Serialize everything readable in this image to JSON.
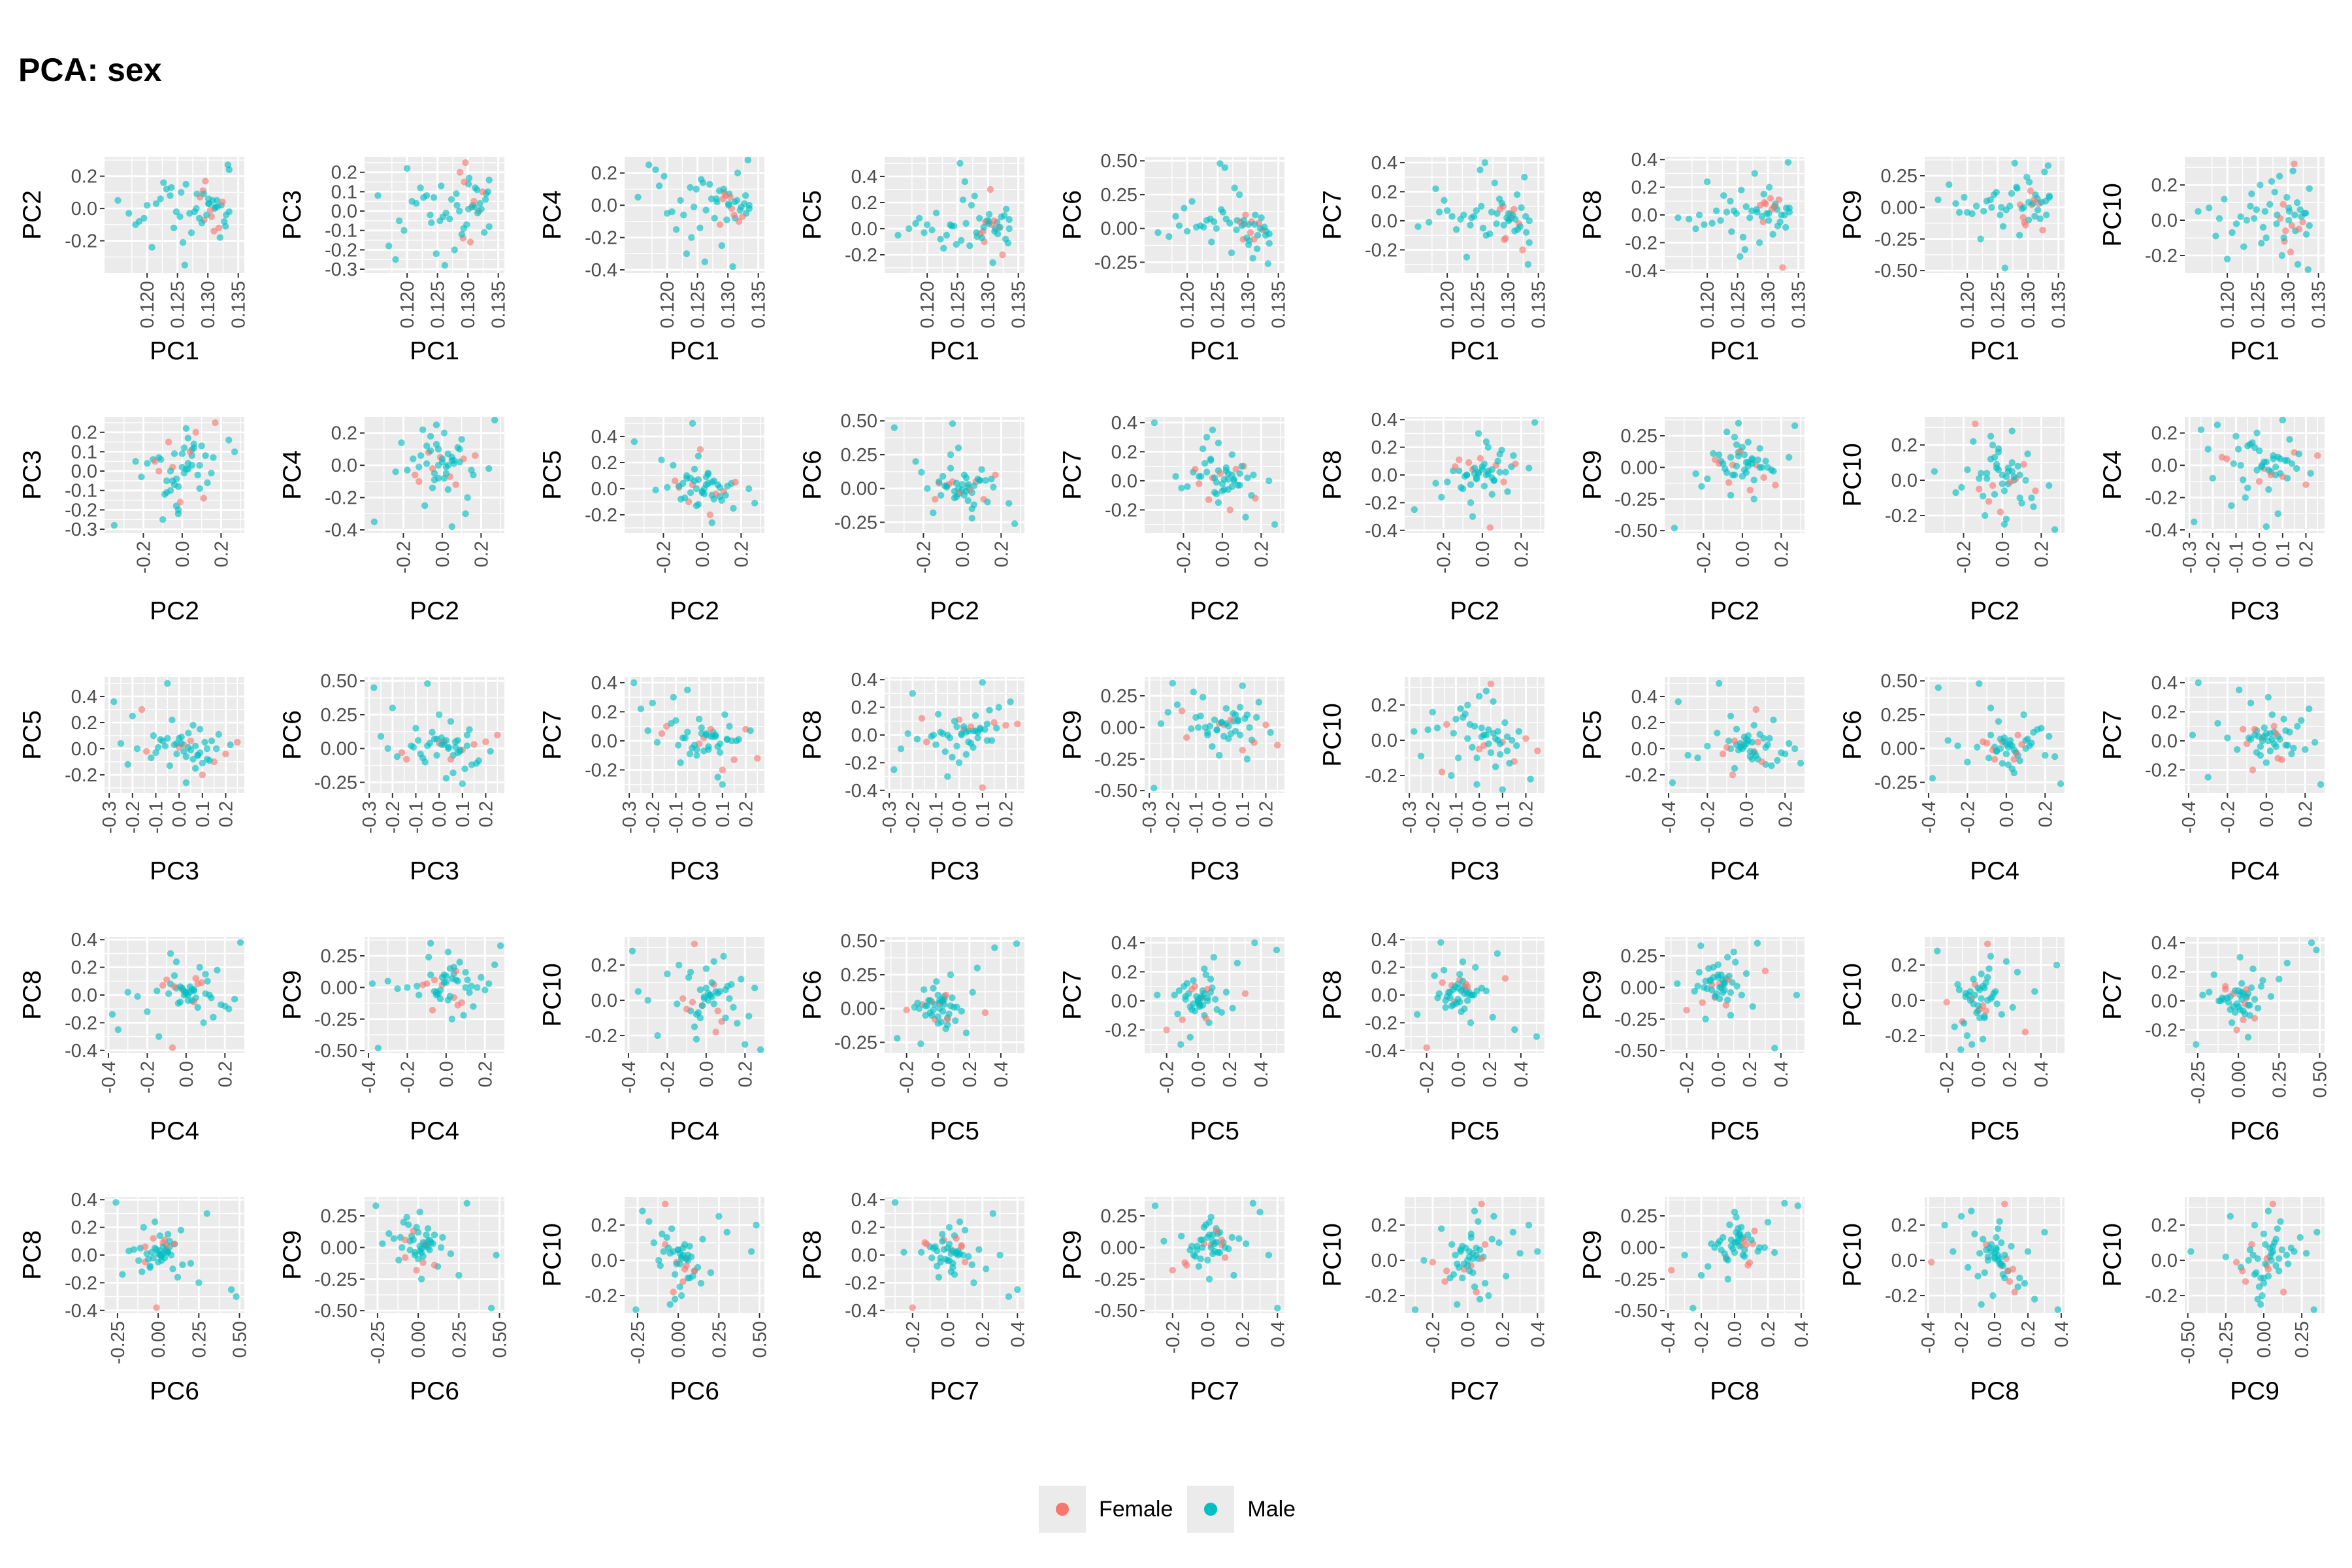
{
  "title": "PCA: sex",
  "colors": {
    "Female": "#F8766D",
    "Male": "#00BFC4",
    "panel_bg": "#EBEBEB",
    "grid": "#FFFFFF"
  },
  "legend": {
    "items": [
      {
        "label": "Female",
        "color": "#F8766D"
      },
      {
        "label": "Male",
        "color": "#00BFC4"
      }
    ]
  },
  "chart_data": {
    "type": "scatter",
    "layout": "pairwise scatter matrix, 45 panels, 9 columns x 5 rows",
    "axes": {
      "PC1": {
        "lim": [
          0.113,
          0.136
        ],
        "ticks": [
          0.12,
          0.125,
          0.13,
          0.135
        ],
        "tick_labels": [
          "0.120",
          "0.125",
          "0.130",
          "0.135"
        ]
      },
      "PC2": {
        "lim": [
          -0.4,
          0.32
        ],
        "ticks": [
          -0.2,
          0.0,
          0.2
        ],
        "tick_labels": [
          "-0.2",
          "0.0",
          "0.2"
        ]
      },
      "PC3": {
        "lim": [
          -0.32,
          0.28
        ],
        "ticks": [
          -0.3,
          -0.2,
          -0.1,
          0.0,
          0.1,
          0.2
        ],
        "tick_labels": [
          "-0.3",
          "-0.2",
          "-0.1",
          "0.0",
          "0.1",
          "0.2"
        ]
      },
      "PC4": {
        "lim": [
          -0.42,
          0.3
        ],
        "ticks": [
          -0.4,
          -0.2,
          0.0,
          0.2
        ],
        "tick_labels": [
          "-0.4",
          "-0.2",
          "0.0",
          "0.2"
        ]
      },
      "PC5": {
        "lim": [
          -0.34,
          0.55
        ],
        "ticks": [
          -0.2,
          0.0,
          0.2,
          0.4
        ],
        "tick_labels": [
          "-0.2",
          "0.0",
          "0.2",
          "0.4"
        ]
      },
      "PC6": {
        "lim": [
          -0.33,
          0.53
        ],
        "ticks": [
          -0.25,
          0.0,
          0.25,
          0.5
        ],
        "tick_labels": [
          "-0.25",
          "0.00",
          "0.25",
          "0.50"
        ]
      },
      "PC7": {
        "lim": [
          -0.36,
          0.44
        ],
        "ticks": [
          -0.2,
          0.0,
          0.2,
          0.4
        ],
        "tick_labels": [
          "-0.2",
          "0.0",
          "0.2",
          "0.4"
        ]
      },
      "PC8": {
        "lim": [
          -0.42,
          0.42
        ],
        "ticks": [
          -0.4,
          -0.2,
          0.0,
          0.2,
          0.4
        ],
        "tick_labels": [
          "-0.4",
          "-0.2",
          "0.0",
          "0.2",
          "0.4"
        ]
      },
      "PC9": {
        "lim": [
          -0.52,
          0.4
        ],
        "ticks": [
          -0.5,
          -0.25,
          0.0,
          0.25
        ],
        "tick_labels": [
          "-0.50",
          "-0.25",
          "0.00",
          "0.25"
        ]
      },
      "PC10": {
        "lim": [
          -0.3,
          0.36
        ],
        "ticks": [
          -0.2,
          0.0,
          0.2
        ],
        "tick_labels": [
          "-0.2",
          "0.0",
          "0.2"
        ]
      }
    },
    "panels": [
      [
        "PC1",
        "PC2"
      ],
      [
        "PC1",
        "PC3"
      ],
      [
        "PC1",
        "PC4"
      ],
      [
        "PC1",
        "PC5"
      ],
      [
        "PC1",
        "PC6"
      ],
      [
        "PC1",
        "PC7"
      ],
      [
        "PC1",
        "PC8"
      ],
      [
        "PC1",
        "PC9"
      ],
      [
        "PC1",
        "PC10"
      ],
      [
        "PC2",
        "PC3"
      ],
      [
        "PC2",
        "PC4"
      ],
      [
        "PC2",
        "PC5"
      ],
      [
        "PC2",
        "PC6"
      ],
      [
        "PC2",
        "PC7"
      ],
      [
        "PC2",
        "PC8"
      ],
      [
        "PC2",
        "PC9"
      ],
      [
        "PC2",
        "PC10"
      ],
      [
        "PC3",
        "PC4"
      ],
      [
        "PC3",
        "PC5"
      ],
      [
        "PC3",
        "PC6"
      ],
      [
        "PC3",
        "PC7"
      ],
      [
        "PC3",
        "PC8"
      ],
      [
        "PC3",
        "PC9"
      ],
      [
        "PC3",
        "PC10"
      ],
      [
        "PC4",
        "PC5"
      ],
      [
        "PC4",
        "PC6"
      ],
      [
        "PC4",
        "PC7"
      ],
      [
        "PC4",
        "PC8"
      ],
      [
        "PC4",
        "PC9"
      ],
      [
        "PC4",
        "PC10"
      ],
      [
        "PC5",
        "PC6"
      ],
      [
        "PC5",
        "PC7"
      ],
      [
        "PC5",
        "PC8"
      ],
      [
        "PC5",
        "PC9"
      ],
      [
        "PC5",
        "PC10"
      ],
      [
        "PC6",
        "PC7"
      ],
      [
        "PC6",
        "PC8"
      ],
      [
        "PC6",
        "PC9"
      ],
      [
        "PC6",
        "PC10"
      ],
      [
        "PC7",
        "PC8"
      ],
      [
        "PC7",
        "PC9"
      ],
      [
        "PC7",
        "PC10"
      ],
      [
        "PC8",
        "PC9"
      ],
      [
        "PC8",
        "PC10"
      ],
      [
        "PC9",
        "PC10"
      ]
    ],
    "samples": {
      "sex": [
        "Female",
        "Male",
        "Male",
        "Male",
        "Female",
        "Male",
        "Male",
        "Male",
        "Male",
        "Male",
        "Female",
        "Male",
        "Male",
        "Male",
        "Male",
        "Female",
        "Male",
        "Male",
        "Male",
        "Male",
        "Male",
        "Female",
        "Male",
        "Male",
        "Male",
        "Male",
        "Male",
        "Female",
        "Male",
        "Male",
        "Male",
        "Male",
        "Male",
        "Male",
        "Female",
        "Male",
        "Male",
        "Male",
        "Male",
        "Male",
        "Male",
        "Male",
        "Female",
        "Male",
        "Male",
        "Male",
        "Male",
        "Female",
        "Male",
        "Male",
        "Male",
        "Male",
        "Male",
        "Male"
      ],
      "PC1": [
        0.1306,
        0.1152,
        0.1187,
        0.1312,
        0.1292,
        0.1215,
        0.1329,
        0.1264,
        0.1248,
        0.1301,
        0.1318,
        0.1195,
        0.133,
        0.1282,
        0.124,
        0.1294,
        0.1322,
        0.117,
        0.1227,
        0.1315,
        0.1259,
        0.1287,
        0.1335,
        0.1208,
        0.1302,
        0.129,
        0.1238,
        0.1324,
        0.1273,
        0.1181,
        0.1311,
        0.1298,
        0.1256,
        0.132,
        0.1304,
        0.1232,
        0.1286,
        0.1335,
        0.127,
        0.12,
        0.1327,
        0.1308,
        0.1296,
        0.1244,
        0.1316,
        0.1278,
        0.1222,
        0.131,
        0.1293,
        0.1262,
        0.1333,
        0.1301,
        0.1254,
        0.1281
      ],
      "PC2": [
        -0.05,
        0.05,
        -0.08,
        0.01,
        0.11,
        0.03,
        -0.11,
        0.15,
        -0.02,
        0.06,
        -0.12,
        -0.06,
        -0.04,
        0.09,
        0.13,
        -0.07,
        0.02,
        -0.03,
        0.16,
        0.05,
        -0.21,
        0.07,
        -0.02,
        -0.24,
        0.03,
        -0.09,
        0.08,
        0.04,
        -0.15,
        -0.1,
        0.0,
        -0.04,
        0.1,
        -0.18,
        -0.01,
        0.12,
        -0.06,
        0.24,
        -0.03,
        0.02,
        -0.08,
        0.05,
        0.17,
        -0.12,
        0.01,
        -0.02,
        0.06,
        -0.14,
        0.09,
        -0.35,
        0.27,
        0.03,
        -0.05,
        0.0
      ],
      "PC3": [
        0.02,
        0.08,
        -0.05,
        0.12,
        -0.14,
        0.04,
        0.06,
        -0.01,
        -0.22,
        0.14,
        0.0,
        -0.1,
        0.09,
        0.03,
        -0.06,
        0.15,
        0.01,
        -0.18,
        0.07,
        0.11,
        -0.03,
        0.2,
        -0.08,
        0.05,
        0.17,
        -0.12,
        -0.02,
        0.1,
        0.06,
        -0.25,
        0.02,
        -0.07,
        0.13,
        0.04,
        -0.16,
        0.08,
        0.0,
        0.16,
        -0.04,
        0.22,
        -0.11,
        0.03,
        0.25,
        0.07,
        -0.01,
        -0.2,
        0.12,
        0.05,
        -0.09,
        -0.28,
        0.1,
        0.01,
        -0.05,
        0.09
      ],
      "PC4": [
        -0.02,
        0.05,
        0.12,
        -0.08,
        0.04,
        -0.15,
        0.06,
        -0.03,
        0.1,
        0.01,
        -0.1,
        0.18,
        -0.05,
        0.02,
        -0.2,
        0.08,
        -0.01,
        0.25,
        -0.06,
        0.03,
        0.14,
        -0.12,
        0.0,
        -0.04,
        0.07,
        -0.25,
        0.11,
        -0.07,
        0.04,
        0.22,
        0.02,
        -0.09,
        0.16,
        -0.03,
        0.05,
        -0.3,
        0.09,
        -0.02,
        0.13,
        -0.05,
        0.01,
        -0.38,
        0.06,
        -0.01,
        0.2,
        -0.08,
        0.03,
        -0.06,
        0.1,
        -0.35,
        0.28,
        0.0,
        -0.14,
        0.04
      ],
      "PC5": [
        0.03,
        -0.05,
        0.08,
        0.0,
        -0.02,
        0.12,
        -0.08,
        0.04,
        -0.12,
        0.06,
        0.01,
        -0.03,
        0.15,
        -0.06,
        0.02,
        -0.1,
        0.09,
        0.0,
        -0.15,
        0.05,
        0.22,
        -0.04,
        0.07,
        -0.01,
        0.11,
        -0.07,
        0.03,
        -0.2,
        0.18,
        0.04,
        -0.02,
        0.06,
        -0.09,
        0.01,
        0.3,
        -0.05,
        0.08,
        0.0,
        -0.13,
        0.03,
        0.1,
        -0.26,
        0.05,
        0.02,
        -0.04,
        0.25,
        -0.08,
        0.06,
        0.01,
        0.36,
        -0.11,
        0.04,
        0.5,
        -0.03
      ],
      "PC6": [
        0.05,
        -0.03,
        0.02,
        0.1,
        -0.08,
        0.01,
        -0.05,
        0.07,
        0.0,
        -0.12,
        0.04,
        0.15,
        -0.02,
        0.06,
        -0.1,
        0.03,
        0.08,
        -0.06,
        0.01,
        -0.15,
        0.12,
        0.05,
        -0.04,
        0.2,
        -0.09,
        0.02,
        0.07,
        -0.01,
        -0.18,
        0.09,
        0.03,
        -0.07,
        0.14,
        0.0,
        -0.03,
        0.06,
        0.25,
        -0.11,
        0.04,
        -0.02,
        0.01,
        -0.22,
        0.1,
        0.05,
        -0.05,
        0.3,
        0.02,
        -0.08,
        0.06,
        0.45,
        -0.26,
        0.03,
        0.48,
        -0.01
      ],
      "PC7": [
        0.02,
        -0.04,
        0.06,
        0.01,
        0.1,
        -0.06,
        0.03,
        -0.1,
        0.07,
        0.0,
        -0.02,
        0.14,
        -0.08,
        0.05,
        0.02,
        -0.13,
        0.09,
        -0.01,
        0.04,
        0.18,
        -0.05,
        0.08,
        -0.15,
        0.03,
        0.01,
        0.12,
        -0.03,
        -0.2,
        0.06,
        0.22,
        -0.07,
        0.02,
        0.1,
        -0.04,
        0.05,
        -0.25,
        0.15,
        0.0,
        -0.09,
        0.07,
        0.3,
        0.04,
        -0.12,
        0.03,
        -0.06,
        0.26,
        0.01,
        0.08,
        -0.03,
        0.4,
        -0.3,
        0.05,
        0.35,
        -0.02
      ],
      "PC8": [
        0.04,
        -0.02,
        0.0,
        0.08,
        -0.05,
        0.03,
        -0.09,
        0.06,
        0.01,
        -0.04,
        0.11,
        -0.07,
        0.05,
        0.02,
        -0.12,
        0.09,
        0.0,
        -0.03,
        0.14,
        0.04,
        -0.16,
        0.07,
        0.02,
        -0.06,
        0.2,
        -0.01,
        0.1,
        -0.38,
        0.03,
        -0.1,
        0.06,
        0.01,
        0.18,
        -0.05,
        0.12,
        0.02,
        -0.2,
        0.05,
        -0.02,
        0.24,
        0.0,
        -0.14,
        0.08,
        0.03,
        -0.08,
        0.3,
        -0.04,
        0.06,
        0.15,
        -0.25,
        0.38,
        0.01,
        -0.3,
        0.04
      ],
      "PC9": [
        0.02,
        0.06,
        -0.04,
        0.1,
        -0.08,
        0.01,
        0.05,
        -0.02,
        0.12,
        -0.1,
        0.03,
        0.08,
        -0.06,
        0.15,
        0.0,
        -0.12,
        0.04,
        0.18,
        -0.03,
        0.07,
        -0.15,
        0.02,
        0.09,
        -0.05,
        0.2,
        -0.01,
        0.06,
        -0.18,
        0.11,
        0.03,
        -0.07,
        0.24,
        0.0,
        -0.09,
        0.13,
        0.05,
        -0.22,
        0.08,
        0.01,
        -0.04,
        0.28,
        0.03,
        -0.14,
        0.1,
        -0.02,
        0.35,
        -0.25,
        0.06,
        0.0,
        -0.48,
        0.33,
        0.04,
        -0.06,
        0.16
      ],
      "PC10": [
        -0.03,
        0.05,
        0.01,
        -0.06,
        0.09,
        -0.02,
        0.04,
        -0.1,
        0.06,
        0.0,
        -0.05,
        0.12,
        -0.08,
        0.03,
        0.15,
        -0.12,
        0.02,
        0.07,
        -0.15,
        0.1,
        -0.04,
        0.01,
        0.18,
        -0.07,
        0.05,
        -0.2,
        0.08,
        -0.01,
        0.22,
        -0.09,
        0.03,
        0.13,
        -0.13,
        0.06,
        -0.18,
        0.0,
        0.25,
        -0.03,
        0.09,
        -0.22,
        0.04,
        0.28,
        -0.06,
        0.01,
        -0.25,
        0.16,
        0.02,
        0.32,
        -0.1,
        0.05,
        -0.28,
        0.07,
        0.2,
        -0.02
      ]
    }
  }
}
